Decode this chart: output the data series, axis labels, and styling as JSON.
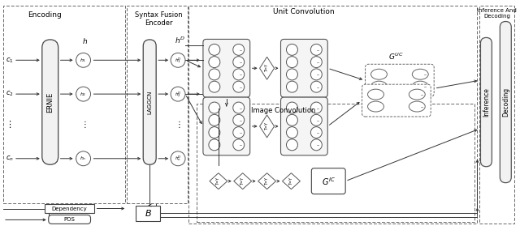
{
  "bg_color": "#ffffff",
  "encoding_label": "Encoding",
  "syntax_label": "Syntax Fusion\nEncoder",
  "unit_conv_label": "Unit Convolution",
  "image_conv_label": "Image Convolution",
  "inference_and_decoding_label": "Inference And\nDecoding",
  "decoding_label": "Decoding",
  "inference_label": "Inference"
}
